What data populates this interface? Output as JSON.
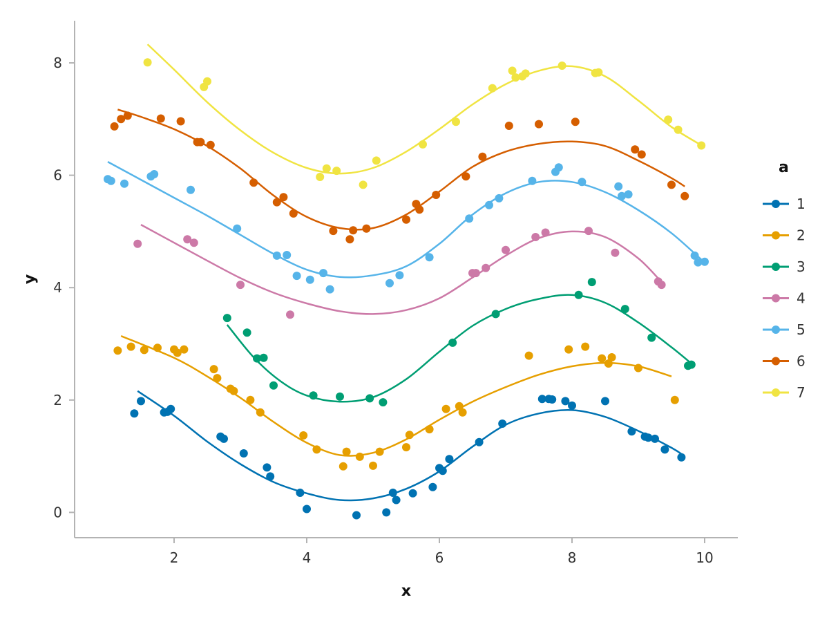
{
  "chart_data": {
    "type": "scatter",
    "xlabel": "x",
    "ylabel": "y",
    "xlim": [
      0.5,
      10.5
    ],
    "ylim": [
      -0.45,
      8.75
    ],
    "x_ticks": [
      2,
      4,
      6,
      8,
      10
    ],
    "y_ticks": [
      0,
      2,
      4,
      6,
      8
    ],
    "grid": false,
    "legend": {
      "title": "a",
      "placement": "right"
    },
    "series": [
      {
        "name": "1",
        "color": "#0072B2",
        "points": [
          [
            1.4,
            1.76
          ],
          [
            1.5,
            1.98
          ],
          [
            1.85,
            1.78
          ],
          [
            1.9,
            1.79
          ],
          [
            1.95,
            1.84
          ],
          [
            2.7,
            1.35
          ],
          [
            2.75,
            1.31
          ],
          [
            3.05,
            1.05
          ],
          [
            3.4,
            0.8
          ],
          [
            3.45,
            0.64
          ],
          [
            3.9,
            0.35
          ],
          [
            4.0,
            0.06
          ],
          [
            4.75,
            -0.05
          ],
          [
            5.2,
            0.0
          ],
          [
            5.3,
            0.35
          ],
          [
            5.35,
            0.22
          ],
          [
            5.6,
            0.34
          ],
          [
            5.9,
            0.45
          ],
          [
            6.0,
            0.79
          ],
          [
            6.05,
            0.74
          ],
          [
            6.15,
            0.95
          ],
          [
            6.6,
            1.25
          ],
          [
            6.95,
            1.58
          ],
          [
            7.55,
            2.02
          ],
          [
            7.65,
            2.02
          ],
          [
            7.7,
            2.01
          ],
          [
            7.9,
            1.98
          ],
          [
            8.0,
            1.9
          ],
          [
            8.5,
            1.98
          ],
          [
            8.9,
            1.44
          ],
          [
            9.1,
            1.35
          ],
          [
            9.15,
            1.33
          ],
          [
            9.25,
            1.31
          ],
          [
            9.4,
            1.12
          ],
          [
            9.65,
            0.98
          ]
        ],
        "fit": [
          [
            1.45,
            2.16
          ],
          [
            2.0,
            1.72
          ],
          [
            2.5,
            1.26
          ],
          [
            3.0,
            0.86
          ],
          [
            3.5,
            0.54
          ],
          [
            4.0,
            0.34
          ],
          [
            4.5,
            0.22
          ],
          [
            5.0,
            0.25
          ],
          [
            5.5,
            0.42
          ],
          [
            6.0,
            0.73
          ],
          [
            6.5,
            1.17
          ],
          [
            7.0,
            1.56
          ],
          [
            7.5,
            1.76
          ],
          [
            8.0,
            1.82
          ],
          [
            8.5,
            1.7
          ],
          [
            9.0,
            1.45
          ],
          [
            9.5,
            1.15
          ],
          [
            9.7,
            1.0
          ]
        ]
      },
      {
        "name": "2",
        "color": "#E69F00",
        "points": [
          [
            1.15,
            2.88
          ],
          [
            1.35,
            2.95
          ],
          [
            1.55,
            2.89
          ],
          [
            1.75,
            2.93
          ],
          [
            2.0,
            2.9
          ],
          [
            2.05,
            2.84
          ],
          [
            2.15,
            2.9
          ],
          [
            2.6,
            2.55
          ],
          [
            2.65,
            2.39
          ],
          [
            2.85,
            2.2
          ],
          [
            2.9,
            2.16
          ],
          [
            3.15,
            2.0
          ],
          [
            3.3,
            1.78
          ],
          [
            3.95,
            1.37
          ],
          [
            4.15,
            1.12
          ],
          [
            4.55,
            0.82
          ],
          [
            4.6,
            1.08
          ],
          [
            4.8,
            0.99
          ],
          [
            5.0,
            0.83
          ],
          [
            5.1,
            1.08
          ],
          [
            5.5,
            1.16
          ],
          [
            5.55,
            1.38
          ],
          [
            5.85,
            1.48
          ],
          [
            6.1,
            1.84
          ],
          [
            6.3,
            1.89
          ],
          [
            6.35,
            1.78
          ],
          [
            7.35,
            2.79
          ],
          [
            7.95,
            2.9
          ],
          [
            8.2,
            2.95
          ],
          [
            8.45,
            2.74
          ],
          [
            8.55,
            2.65
          ],
          [
            8.6,
            2.76
          ],
          [
            9.0,
            2.57
          ],
          [
            9.55,
            2.0
          ]
        ],
        "fit": [
          [
            1.2,
            3.14
          ],
          [
            2.0,
            2.75
          ],
          [
            2.5,
            2.42
          ],
          [
            3.0,
            2.04
          ],
          [
            3.5,
            1.61
          ],
          [
            4.0,
            1.24
          ],
          [
            4.5,
            1.02
          ],
          [
            5.0,
            1.06
          ],
          [
            5.5,
            1.3
          ],
          [
            6.0,
            1.65
          ],
          [
            6.5,
            1.97
          ],
          [
            7.0,
            2.23
          ],
          [
            7.5,
            2.45
          ],
          [
            8.0,
            2.6
          ],
          [
            8.5,
            2.66
          ],
          [
            9.0,
            2.6
          ],
          [
            9.5,
            2.42
          ]
        ]
      },
      {
        "name": "3",
        "color": "#009E73",
        "points": [
          [
            2.8,
            3.46
          ],
          [
            3.1,
            3.2
          ],
          [
            3.25,
            2.74
          ],
          [
            3.35,
            2.75
          ],
          [
            3.5,
            2.26
          ],
          [
            4.1,
            2.08
          ],
          [
            4.5,
            2.06
          ],
          [
            4.95,
            2.03
          ],
          [
            5.15,
            1.96
          ],
          [
            6.2,
            3.02
          ],
          [
            6.85,
            3.53
          ],
          [
            8.1,
            3.87
          ],
          [
            8.3,
            4.1
          ],
          [
            8.8,
            3.62
          ],
          [
            9.2,
            3.11
          ],
          [
            9.75,
            2.61
          ],
          [
            9.8,
            2.63
          ]
        ],
        "fit": [
          [
            2.8,
            3.34
          ],
          [
            3.2,
            2.76
          ],
          [
            3.6,
            2.34
          ],
          [
            4.0,
            2.08
          ],
          [
            4.5,
            1.97
          ],
          [
            5.0,
            2.05
          ],
          [
            5.5,
            2.37
          ],
          [
            6.0,
            2.86
          ],
          [
            6.5,
            3.32
          ],
          [
            7.0,
            3.62
          ],
          [
            7.5,
            3.8
          ],
          [
            8.0,
            3.87
          ],
          [
            8.5,
            3.73
          ],
          [
            9.0,
            3.38
          ],
          [
            9.5,
            2.94
          ],
          [
            9.8,
            2.65
          ]
        ]
      },
      {
        "name": "4",
        "color": "#CC79A7",
        "points": [
          [
            1.45,
            4.78
          ],
          [
            2.2,
            4.86
          ],
          [
            2.3,
            4.8
          ],
          [
            3.0,
            4.05
          ],
          [
            3.75,
            3.52
          ],
          [
            6.5,
            4.26
          ],
          [
            6.55,
            4.26
          ],
          [
            6.7,
            4.35
          ],
          [
            7.0,
            4.67
          ],
          [
            7.45,
            4.9
          ],
          [
            7.6,
            4.98
          ],
          [
            8.25,
            5.01
          ],
          [
            8.65,
            4.62
          ],
          [
            9.3,
            4.11
          ],
          [
            9.35,
            4.05
          ]
        ],
        "fit": [
          [
            1.5,
            5.12
          ],
          [
            2.0,
            4.8
          ],
          [
            2.5,
            4.48
          ],
          [
            3.0,
            4.17
          ],
          [
            3.5,
            3.91
          ],
          [
            4.0,
            3.72
          ],
          [
            4.5,
            3.58
          ],
          [
            5.0,
            3.53
          ],
          [
            5.5,
            3.6
          ],
          [
            6.0,
            3.81
          ],
          [
            6.5,
            4.18
          ],
          [
            7.0,
            4.57
          ],
          [
            7.5,
            4.88
          ],
          [
            8.0,
            5.0
          ],
          [
            8.5,
            4.9
          ],
          [
            9.0,
            4.52
          ],
          [
            9.35,
            4.1
          ]
        ]
      },
      {
        "name": "5",
        "color": "#56B4E9",
        "points": [
          [
            1.0,
            5.93
          ],
          [
            1.05,
            5.9
          ],
          [
            1.25,
            5.85
          ],
          [
            1.65,
            5.98
          ],
          [
            1.7,
            6.02
          ],
          [
            2.25,
            5.74
          ],
          [
            2.95,
            5.05
          ],
          [
            3.55,
            4.57
          ],
          [
            3.7,
            4.58
          ],
          [
            3.85,
            4.21
          ],
          [
            4.05,
            4.14
          ],
          [
            4.25,
            4.26
          ],
          [
            4.35,
            3.97
          ],
          [
            5.25,
            4.08
          ],
          [
            5.4,
            4.22
          ],
          [
            5.85,
            4.54
          ],
          [
            6.45,
            5.23
          ],
          [
            6.75,
            5.47
          ],
          [
            6.9,
            5.59
          ],
          [
            7.4,
            5.9
          ],
          [
            7.75,
            6.06
          ],
          [
            7.8,
            6.14
          ],
          [
            8.15,
            5.88
          ],
          [
            8.7,
            5.8
          ],
          [
            8.75,
            5.63
          ],
          [
            8.85,
            5.66
          ],
          [
            9.85,
            4.57
          ],
          [
            9.9,
            4.45
          ],
          [
            10.0,
            4.46
          ]
        ],
        "fit": [
          [
            1.0,
            6.24
          ],
          [
            1.5,
            5.92
          ],
          [
            2.0,
            5.6
          ],
          [
            2.5,
            5.28
          ],
          [
            3.0,
            4.94
          ],
          [
            3.5,
            4.6
          ],
          [
            4.0,
            4.32
          ],
          [
            4.5,
            4.19
          ],
          [
            5.0,
            4.22
          ],
          [
            5.5,
            4.38
          ],
          [
            6.0,
            4.78
          ],
          [
            6.5,
            5.3
          ],
          [
            7.0,
            5.68
          ],
          [
            7.5,
            5.88
          ],
          [
            8.0,
            5.88
          ],
          [
            8.5,
            5.7
          ],
          [
            9.0,
            5.38
          ],
          [
            9.5,
            4.97
          ],
          [
            9.95,
            4.5
          ]
        ]
      },
      {
        "name": "6",
        "color": "#D55E00",
        "points": [
          [
            1.1,
            6.87
          ],
          [
            1.2,
            7.0
          ],
          [
            1.3,
            7.06
          ],
          [
            1.8,
            7.01
          ],
          [
            2.1,
            6.96
          ],
          [
            2.35,
            6.59
          ],
          [
            2.4,
            6.59
          ],
          [
            2.55,
            6.54
          ],
          [
            3.2,
            5.87
          ],
          [
            3.55,
            5.52
          ],
          [
            3.65,
            5.61
          ],
          [
            3.8,
            5.32
          ],
          [
            4.4,
            5.01
          ],
          [
            4.65,
            4.86
          ],
          [
            4.7,
            5.02
          ],
          [
            4.9,
            5.05
          ],
          [
            5.5,
            5.21
          ],
          [
            5.65,
            5.49
          ],
          [
            5.7,
            5.39
          ],
          [
            5.95,
            5.65
          ],
          [
            6.4,
            5.98
          ],
          [
            6.65,
            6.33
          ],
          [
            7.05,
            6.88
          ],
          [
            7.5,
            6.91
          ],
          [
            8.05,
            6.95
          ],
          [
            8.95,
            6.46
          ],
          [
            9.05,
            6.37
          ],
          [
            9.5,
            5.83
          ],
          [
            9.7,
            5.63
          ]
        ],
        "fit": [
          [
            1.15,
            7.17
          ],
          [
            1.5,
            7.04
          ],
          [
            2.0,
            6.82
          ],
          [
            2.5,
            6.52
          ],
          [
            3.0,
            6.12
          ],
          [
            3.5,
            5.64
          ],
          [
            4.0,
            5.26
          ],
          [
            4.5,
            5.06
          ],
          [
            5.0,
            5.06
          ],
          [
            5.5,
            5.3
          ],
          [
            6.0,
            5.71
          ],
          [
            6.5,
            6.15
          ],
          [
            7.0,
            6.42
          ],
          [
            7.5,
            6.56
          ],
          [
            8.0,
            6.6
          ],
          [
            8.5,
            6.52
          ],
          [
            9.0,
            6.26
          ],
          [
            9.5,
            5.95
          ],
          [
            9.7,
            5.8
          ]
        ]
      },
      {
        "name": "7",
        "color": "#F0E442",
        "points": [
          [
            1.6,
            8.01
          ],
          [
            2.45,
            7.57
          ],
          [
            2.5,
            7.67
          ],
          [
            4.2,
            5.97
          ],
          [
            4.3,
            6.12
          ],
          [
            4.45,
            6.08
          ],
          [
            4.85,
            5.83
          ],
          [
            5.05,
            6.26
          ],
          [
            5.75,
            6.55
          ],
          [
            6.25,
            6.95
          ],
          [
            6.8,
            7.55
          ],
          [
            7.1,
            7.86
          ],
          [
            7.15,
            7.74
          ],
          [
            7.25,
            7.76
          ],
          [
            7.3,
            7.81
          ],
          [
            7.85,
            7.95
          ],
          [
            8.35,
            7.82
          ],
          [
            8.4,
            7.83
          ],
          [
            9.45,
            6.99
          ],
          [
            9.6,
            6.81
          ],
          [
            9.95,
            6.53
          ]
        ],
        "fit": [
          [
            1.6,
            8.33
          ],
          [
            2.0,
            7.88
          ],
          [
            2.5,
            7.3
          ],
          [
            3.0,
            6.8
          ],
          [
            3.5,
            6.4
          ],
          [
            4.0,
            6.13
          ],
          [
            4.5,
            6.03
          ],
          [
            5.0,
            6.13
          ],
          [
            5.5,
            6.42
          ],
          [
            6.0,
            6.82
          ],
          [
            6.5,
            7.26
          ],
          [
            7.0,
            7.62
          ],
          [
            7.5,
            7.86
          ],
          [
            8.0,
            7.94
          ],
          [
            8.5,
            7.76
          ],
          [
            9.0,
            7.33
          ],
          [
            9.5,
            6.86
          ],
          [
            10.0,
            6.5
          ]
        ]
      }
    ]
  }
}
